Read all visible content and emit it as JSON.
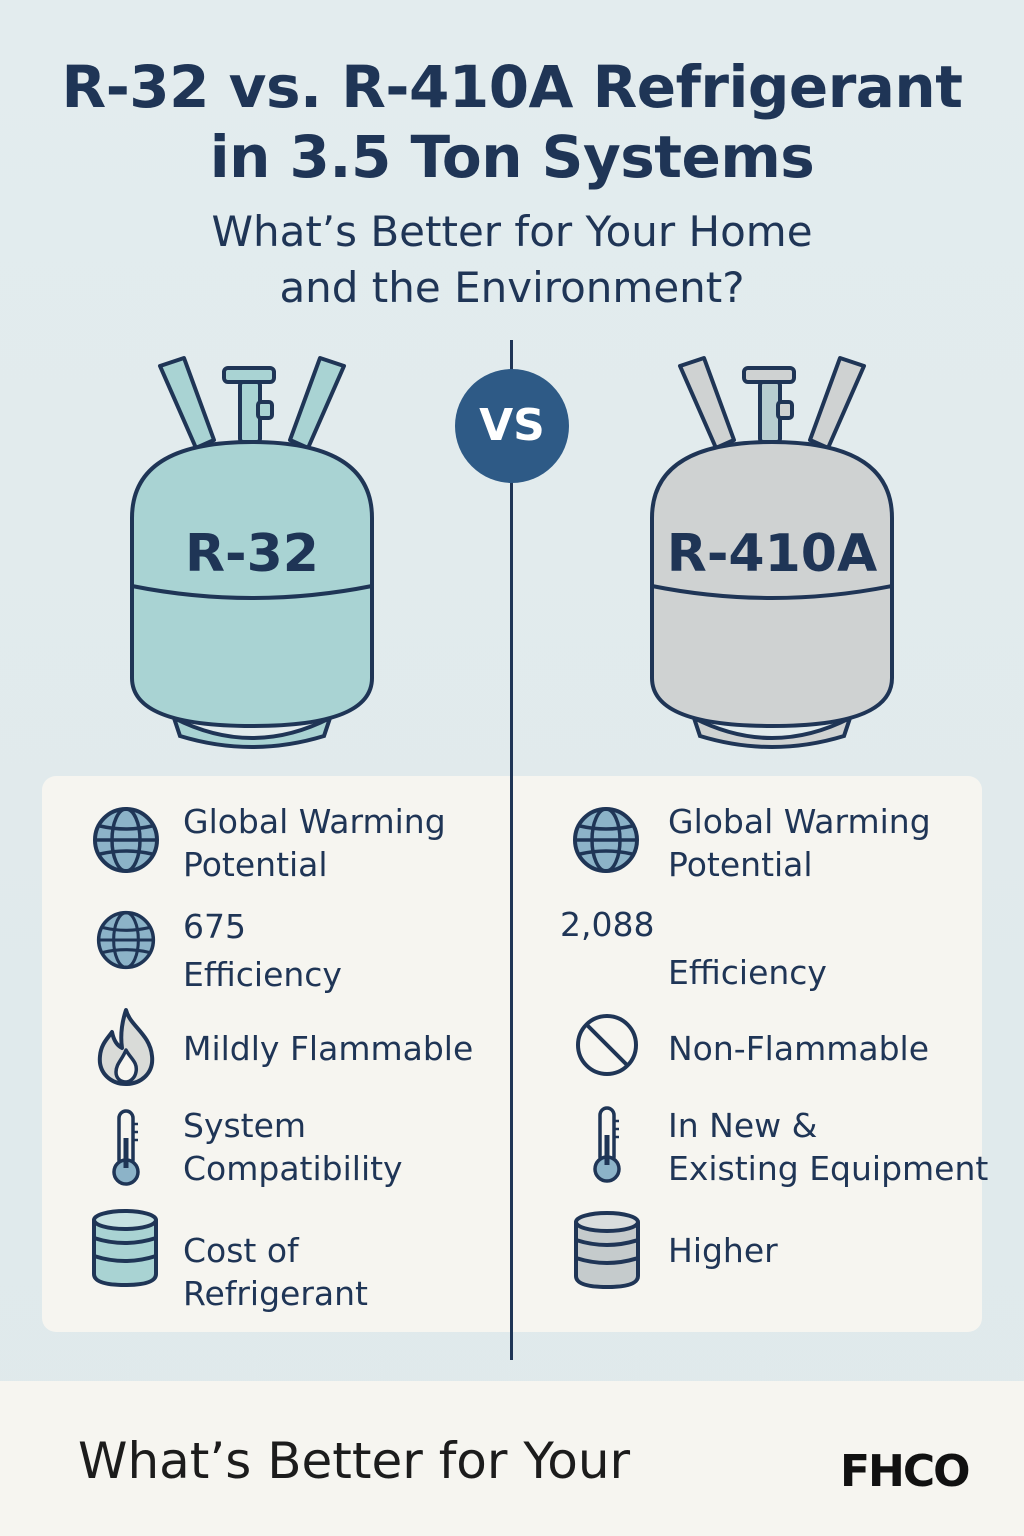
{
  "header": {
    "title_line1": "R-32 vs. R-410A Refrigerant",
    "title_line2": "in 3.5 Ton Systems",
    "subtitle_line1": "What’s Better for Your Home",
    "subtitle_line2": "and the Environment?"
  },
  "vs_label": "VS",
  "left": {
    "tank_label": "R-32",
    "tank_color": "#a9d3d3",
    "rows": [
      {
        "icon": "globe-icon",
        "lines": [
          "Global Warming",
          "Potential"
        ]
      },
      {
        "icon": "globe-icon",
        "lines": [
          "675",
          "Efficiency"
        ]
      },
      {
        "icon": "flame-icon",
        "lines": [
          "Mildly Flammable"
        ]
      },
      {
        "icon": "thermometer-icon",
        "lines": [
          "System",
          "Compatibility"
        ]
      },
      {
        "icon": "coin-stack-icon",
        "lines": [
          "Cost of",
          "Refrigerant"
        ]
      }
    ]
  },
  "right": {
    "tank_label": "R-410A",
    "tank_color": "#cfd2d2",
    "gwp_value": "2,088",
    "rows": [
      {
        "icon": "globe-icon",
        "lines": [
          "Global Warming",
          "Potential"
        ]
      },
      {
        "icon": "",
        "lines": [
          "Efficiency"
        ]
      },
      {
        "icon": "no-symbol-icon",
        "lines": [
          "Non-Flammable"
        ]
      },
      {
        "icon": "thermometer-icon",
        "lines": [
          "In New &",
          "Existing Equipment"
        ]
      },
      {
        "icon": "coin-stack-icon",
        "lines": [
          "Higher"
        ]
      }
    ]
  },
  "footer": {
    "text": "What’s Better for Your",
    "logo": "FHCO"
  }
}
